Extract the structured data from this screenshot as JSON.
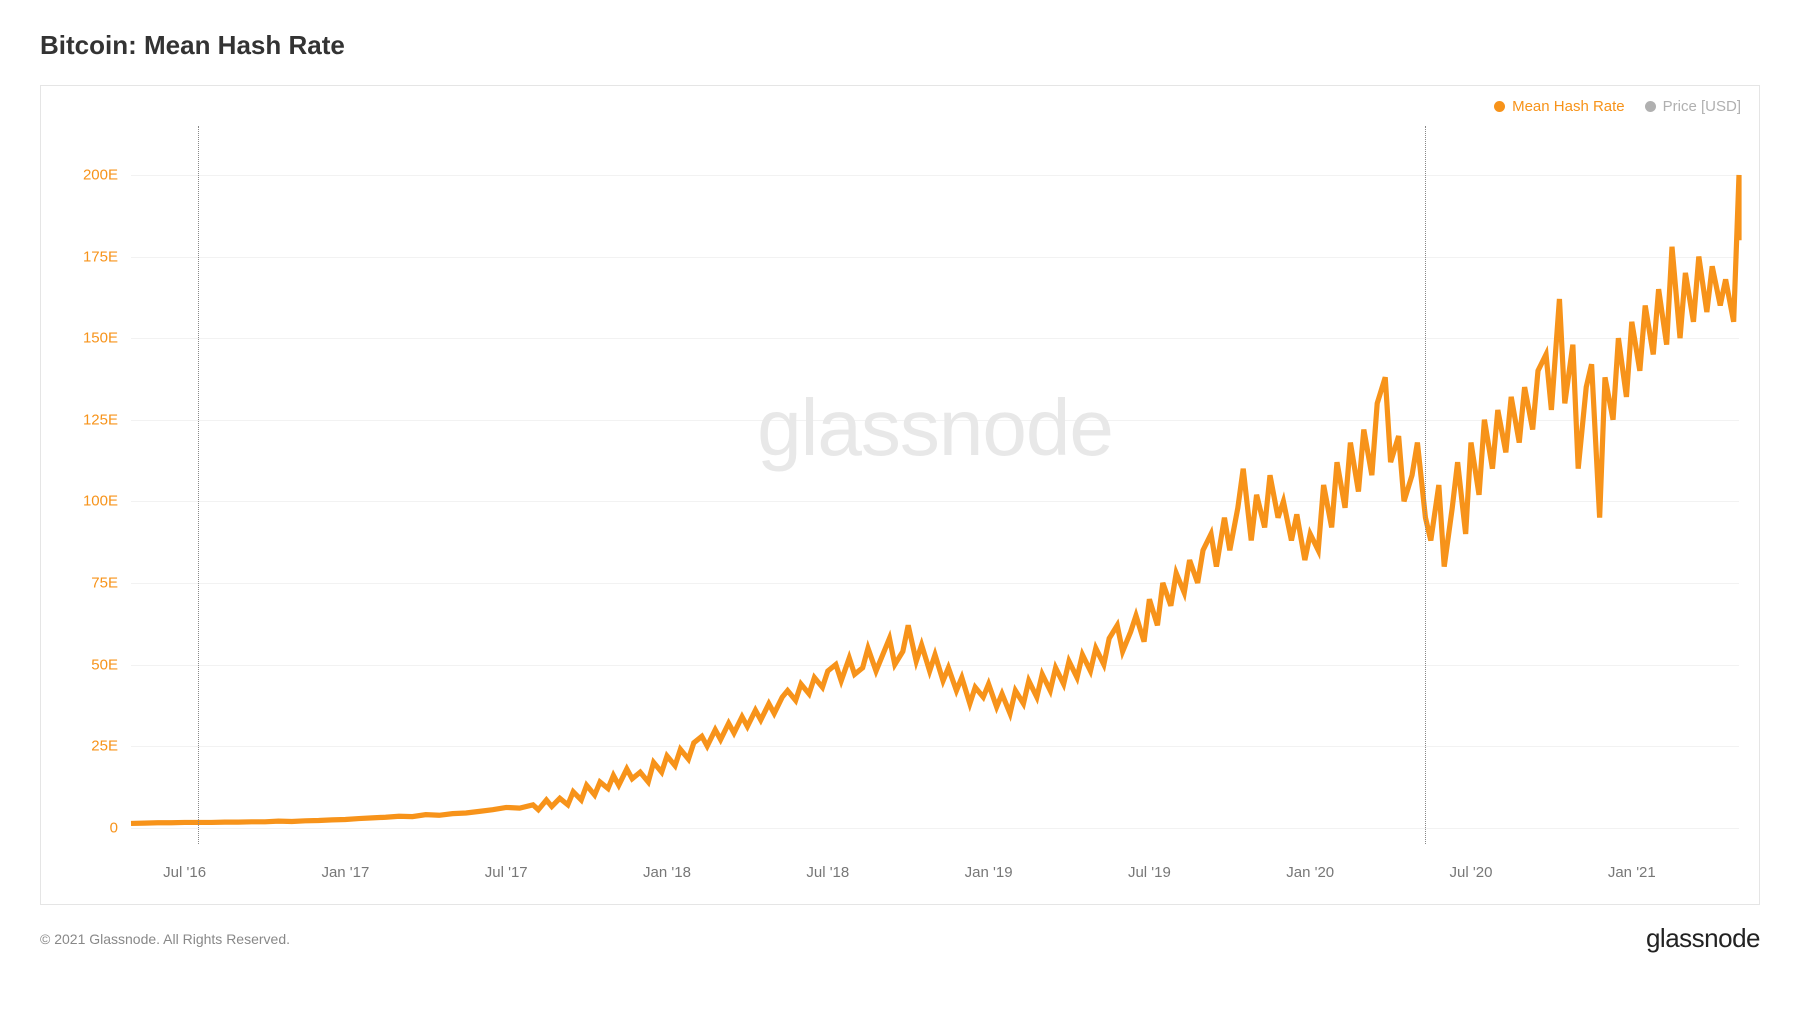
{
  "title": "Bitcoin: Mean Hash Rate",
  "watermark": "glassnode",
  "footer": {
    "copyright": "© 2021 Glassnode. All Rights Reserved.",
    "brand": "glassnode"
  },
  "legend": {
    "series1": {
      "label": "Mean Hash Rate",
      "color": "#f7931a"
    },
    "series2": {
      "label": "Price [USD]",
      "color": "#b0b0b0"
    }
  },
  "chart": {
    "type": "line",
    "background_color": "#ffffff",
    "border_color": "#e5e5e5",
    "grid_color": "#f2f2f2",
    "line_color": "#f7931a",
    "line_width": 1.3,
    "watermark_color": "#e8e8e8",
    "y_axis": {
      "label_color": "#f7931a",
      "min": -5,
      "max": 215,
      "ticks": [
        0,
        25,
        50,
        75,
        100,
        125,
        150,
        175,
        200
      ],
      "tick_labels": [
        "0",
        "25E",
        "50E",
        "75E",
        "100E",
        "125E",
        "150E",
        "175E",
        "200E"
      ]
    },
    "x_axis": {
      "label_color": "#777777",
      "min": 0,
      "max": 60,
      "ticks": [
        2,
        8,
        14,
        20,
        26,
        32,
        38,
        44,
        50,
        56
      ],
      "tick_labels": [
        "Jul '16",
        "Jan '17",
        "Jul '17",
        "Jan '18",
        "Jul '18",
        "Jan '19",
        "Jul '19",
        "Jan '20",
        "Jul '20",
        "Jan '21"
      ]
    },
    "vertical_lines": {
      "color": "#888888",
      "positions": [
        2.5,
        48.3
      ]
    },
    "series": {
      "name": "Mean Hash Rate",
      "color": "#f7931a",
      "data": [
        [
          0,
          1.3
        ],
        [
          0.5,
          1.4
        ],
        [
          1,
          1.5
        ],
        [
          1.5,
          1.5
        ],
        [
          2,
          1.6
        ],
        [
          2.5,
          1.6
        ],
        [
          3,
          1.6
        ],
        [
          3.5,
          1.7
        ],
        [
          4,
          1.7
        ],
        [
          4.5,
          1.8
        ],
        [
          5,
          1.8
        ],
        [
          5.5,
          2.0
        ],
        [
          6,
          1.9
        ],
        [
          6.5,
          2.1
        ],
        [
          7,
          2.2
        ],
        [
          7.5,
          2.4
        ],
        [
          8,
          2.5
        ],
        [
          8.5,
          2.8
        ],
        [
          9,
          3.0
        ],
        [
          9.5,
          3.2
        ],
        [
          10,
          3.5
        ],
        [
          10.5,
          3.4
        ],
        [
          11,
          4.0
        ],
        [
          11.5,
          3.8
        ],
        [
          12,
          4.3
        ],
        [
          12.5,
          4.5
        ],
        [
          13,
          5.0
        ],
        [
          13.5,
          5.5
        ],
        [
          14,
          6.2
        ],
        [
          14.5,
          6.0
        ],
        [
          15,
          7.0
        ],
        [
          15.2,
          5.5
        ],
        [
          15.5,
          8.5
        ],
        [
          15.7,
          6.5
        ],
        [
          16,
          9.0
        ],
        [
          16.3,
          7.0
        ],
        [
          16.5,
          11.0
        ],
        [
          16.8,
          8.5
        ],
        [
          17,
          13.0
        ],
        [
          17.3,
          10.0
        ],
        [
          17.5,
          14
        ],
        [
          17.8,
          12
        ],
        [
          18,
          16
        ],
        [
          18.2,
          13
        ],
        [
          18.5,
          18
        ],
        [
          18.7,
          15
        ],
        [
          19,
          17
        ],
        [
          19.3,
          14
        ],
        [
          19.5,
          20
        ],
        [
          19.8,
          17
        ],
        [
          20,
          22
        ],
        [
          20.3,
          19
        ],
        [
          20.5,
          24
        ],
        [
          20.8,
          21
        ],
        [
          21,
          26
        ],
        [
          21.3,
          28
        ],
        [
          21.5,
          25
        ],
        [
          21.8,
          30
        ],
        [
          22,
          27
        ],
        [
          22.3,
          32
        ],
        [
          22.5,
          29
        ],
        [
          22.8,
          34
        ],
        [
          23,
          31
        ],
        [
          23.3,
          36
        ],
        [
          23.5,
          33
        ],
        [
          23.8,
          38
        ],
        [
          24,
          35
        ],
        [
          24.3,
          40
        ],
        [
          24.5,
          42
        ],
        [
          24.8,
          39
        ],
        [
          25,
          44
        ],
        [
          25.3,
          41
        ],
        [
          25.5,
          46
        ],
        [
          25.8,
          43
        ],
        [
          26,
          48
        ],
        [
          26.3,
          50
        ],
        [
          26.5,
          45
        ],
        [
          26.8,
          52
        ],
        [
          27,
          47
        ],
        [
          27.3,
          49
        ],
        [
          27.5,
          55
        ],
        [
          27.8,
          48
        ],
        [
          28,
          52
        ],
        [
          28.3,
          58
        ],
        [
          28.5,
          50
        ],
        [
          28.8,
          54
        ],
        [
          29,
          62
        ],
        [
          29.3,
          51
        ],
        [
          29.5,
          56
        ],
        [
          29.8,
          48
        ],
        [
          30,
          53
        ],
        [
          30.3,
          45
        ],
        [
          30.5,
          49
        ],
        [
          30.8,
          42
        ],
        [
          31,
          46
        ],
        [
          31.3,
          38
        ],
        [
          31.5,
          43
        ],
        [
          31.8,
          40
        ],
        [
          32,
          44
        ],
        [
          32.3,
          37
        ],
        [
          32.5,
          41
        ],
        [
          32.8,
          35
        ],
        [
          33,
          42
        ],
        [
          33.3,
          38
        ],
        [
          33.5,
          45
        ],
        [
          33.8,
          40
        ],
        [
          34,
          47
        ],
        [
          34.3,
          42
        ],
        [
          34.5,
          49
        ],
        [
          34.8,
          44
        ],
        [
          35,
          51
        ],
        [
          35.3,
          46
        ],
        [
          35.5,
          53
        ],
        [
          35.8,
          48
        ],
        [
          36,
          55
        ],
        [
          36.3,
          50
        ],
        [
          36.5,
          58
        ],
        [
          36.8,
          62
        ],
        [
          37,
          54
        ],
        [
          37.3,
          60
        ],
        [
          37.5,
          65
        ],
        [
          37.8,
          57
        ],
        [
          38,
          70
        ],
        [
          38.3,
          62
        ],
        [
          38.5,
          75
        ],
        [
          38.8,
          68
        ],
        [
          39,
          78
        ],
        [
          39.3,
          72
        ],
        [
          39.5,
          82
        ],
        [
          39.8,
          75
        ],
        [
          40,
          85
        ],
        [
          40.3,
          90
        ],
        [
          40.5,
          80
        ],
        [
          40.8,
          95
        ],
        [
          41,
          85
        ],
        [
          41.3,
          98
        ],
        [
          41.5,
          110
        ],
        [
          41.8,
          88
        ],
        [
          42,
          102
        ],
        [
          42.3,
          92
        ],
        [
          42.5,
          108
        ],
        [
          42.8,
          95
        ],
        [
          43,
          100
        ],
        [
          43.3,
          88
        ],
        [
          43.5,
          96
        ],
        [
          43.8,
          82
        ],
        [
          44,
          90
        ],
        [
          44.3,
          85
        ],
        [
          44.5,
          105
        ],
        [
          44.8,
          92
        ],
        [
          45,
          112
        ],
        [
          45.3,
          98
        ],
        [
          45.5,
          118
        ],
        [
          45.8,
          103
        ],
        [
          46,
          122
        ],
        [
          46.3,
          108
        ],
        [
          46.5,
          130
        ],
        [
          46.8,
          138
        ],
        [
          47,
          112
        ],
        [
          47.3,
          120
        ],
        [
          47.5,
          100
        ],
        [
          47.8,
          108
        ],
        [
          48,
          118
        ],
        [
          48.3,
          95
        ],
        [
          48.5,
          88
        ],
        [
          48.8,
          105
        ],
        [
          49,
          80
        ],
        [
          49.3,
          98
        ],
        [
          49.5,
          112
        ],
        [
          49.8,
          90
        ],
        [
          50,
          118
        ],
        [
          50.3,
          102
        ],
        [
          50.5,
          125
        ],
        [
          50.8,
          110
        ],
        [
          51,
          128
        ],
        [
          51.3,
          115
        ],
        [
          51.5,
          132
        ],
        [
          51.8,
          118
        ],
        [
          52,
          135
        ],
        [
          52.3,
          122
        ],
        [
          52.5,
          140
        ],
        [
          52.8,
          145
        ],
        [
          53,
          128
        ],
        [
          53.3,
          162
        ],
        [
          53.5,
          130
        ],
        [
          53.8,
          148
        ],
        [
          54,
          110
        ],
        [
          54.3,
          135
        ],
        [
          54.5,
          142
        ],
        [
          54.8,
          95
        ],
        [
          55,
          138
        ],
        [
          55.3,
          125
        ],
        [
          55.5,
          150
        ],
        [
          55.8,
          132
        ],
        [
          56,
          155
        ],
        [
          56.3,
          140
        ],
        [
          56.5,
          160
        ],
        [
          56.8,
          145
        ],
        [
          57,
          165
        ],
        [
          57.3,
          148
        ],
        [
          57.5,
          178
        ],
        [
          57.8,
          150
        ],
        [
          58,
          170
        ],
        [
          58.3,
          155
        ],
        [
          58.5,
          175
        ],
        [
          58.8,
          158
        ],
        [
          59,
          172
        ],
        [
          59.3,
          160
        ],
        [
          59.5,
          168
        ],
        [
          59.8,
          155
        ],
        [
          60,
          200
        ],
        [
          60,
          180
        ]
      ]
    }
  }
}
